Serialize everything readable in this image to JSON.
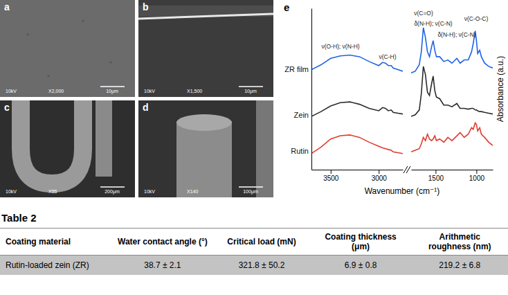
{
  "images": [
    {
      "label": "a",
      "voltage": "10kV",
      "magnification": "X2,000",
      "scale_bar": "10μm"
    },
    {
      "label": "b",
      "voltage": "10kV",
      "magnification": "X1,500",
      "scale_bar": "10μm"
    },
    {
      "label": "c",
      "voltage": "10kV",
      "magnification": "X55",
      "scale_bar": "200μm"
    },
    {
      "label": "d",
      "voltage": "10kV",
      "magnification": "X140",
      "scale_bar": "100μm"
    }
  ],
  "chart_data": {
    "type": "line",
    "panel_label": "e",
    "x_label": "Wavenumber (cm⁻¹)",
    "y_label": "Absorbance (a.u.)",
    "x": [
      3700,
      3600,
      3500,
      3400,
      3300,
      3200,
      3100,
      3000,
      2960,
      2930,
      2900,
      2870,
      2850,
      2800,
      2750,
      1800,
      1750,
      1700,
      1675,
      1650,
      1625,
      1600,
      1575,
      1550,
      1530,
      1510,
      1490,
      1450,
      1400,
      1350,
      1300,
      1240,
      1200,
      1150,
      1100,
      1060,
      1040,
      1015,
      1000,
      985,
      960,
      940,
      900,
      850,
      800
    ],
    "series": [
      {
        "name": "ZR film",
        "color": "#1f63e6",
        "line_style": "solid",
        "values": [
          6.2,
          6.5,
          6.9,
          7.05,
          7.1,
          7.0,
          6.7,
          6.45,
          6.65,
          6.6,
          6.45,
          6.45,
          6.3,
          6.2,
          6.1,
          6.0,
          6.1,
          6.5,
          7.3,
          8.8,
          8.2,
          7.3,
          7.0,
          7.6,
          8.0,
          7.4,
          7.0,
          7.0,
          6.7,
          6.8,
          6.6,
          6.9,
          6.6,
          6.8,
          6.8,
          7.3,
          7.8,
          8.6,
          8.0,
          7.2,
          7.4,
          7.0,
          6.6,
          6.4,
          6.3
        ]
      },
      {
        "name": "Zein",
        "color": "#2b2b2b",
        "line_style": "solid",
        "values": [
          3.3,
          3.6,
          3.95,
          4.15,
          4.2,
          4.05,
          3.8,
          3.65,
          3.85,
          3.8,
          3.65,
          3.7,
          3.55,
          3.5,
          3.45,
          3.3,
          3.4,
          3.7,
          4.7,
          6.4,
          5.9,
          4.8,
          4.6,
          5.3,
          5.8,
          4.9,
          4.5,
          4.4,
          4.0,
          4.0,
          3.9,
          4.1,
          3.8,
          3.8,
          3.75,
          3.8,
          3.8,
          3.7,
          3.7,
          3.65,
          3.6,
          3.6,
          3.55,
          3.5,
          3.45
        ]
      },
      {
        "name": "Rutin",
        "color": "#e03a2f",
        "line_style": "solid",
        "values": [
          1.0,
          1.4,
          1.9,
          2.1,
          2.15,
          2.0,
          1.7,
          1.45,
          1.35,
          1.3,
          1.25,
          1.2,
          1.1,
          1.05,
          1.0,
          1.1,
          1.2,
          1.3,
          1.6,
          2.0,
          1.8,
          2.2,
          1.9,
          1.8,
          1.9,
          2.1,
          1.8,
          1.9,
          1.7,
          2.0,
          1.8,
          2.1,
          2.3,
          2.0,
          2.2,
          2.6,
          2.5,
          2.9,
          2.8,
          2.4,
          2.6,
          2.2,
          2.0,
          1.7,
          1.5
        ]
      }
    ],
    "xlim": [
      [
        3700,
        2750
      ],
      [
        1800,
        800
      ]
    ],
    "xticks": [
      3500,
      3000,
      1500,
      1000
    ],
    "ylim": [
      0,
      10
    ],
    "yticks": [],
    "tick_labels": "x",
    "grid": false,
    "annotations": [
      "ν(O-H); ν(N-H)",
      "ν(C-H)",
      "ν(C=O)",
      "δ(N-H); ν(C-N)",
      "δ(N-H); ν(C-N)",
      "ν(C-O-C)"
    ]
  },
  "table": {
    "title": "Table 2",
    "columns": [
      "Coating material",
      "Water contact angle (°)",
      "Critical load (mN)",
      "Coating thickness (μm)",
      "Arithmetic roughness (nm)"
    ],
    "rows": [
      [
        "Rutin-loaded zein (ZR)",
        "38.7 ± 2.1",
        "321.8 ± 50.2",
        "6.9 ± 0.8",
        "219.2 ± 6.8"
      ]
    ]
  }
}
